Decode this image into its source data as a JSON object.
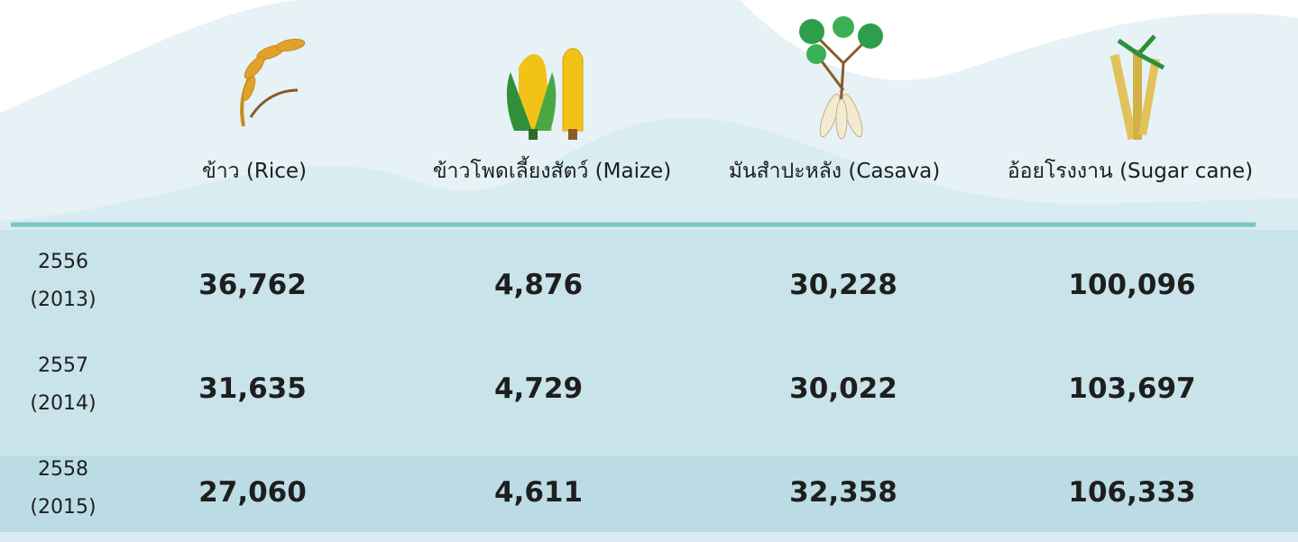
{
  "table": {
    "columns": [
      "ข้าว (Rice)",
      "ข้าวโพดเลี้ยงสัตว์ (Maize)",
      "มันสำปะหลัง (Casava)",
      "อ้อยโรงงาน (Sugar cane)"
    ],
    "rows": [
      {
        "year": "2556",
        "year_ce": "(2013)",
        "values": [
          "36,762",
          "4,876",
          "30,228",
          "100,096"
        ]
      },
      {
        "year": "2557",
        "year_ce": "(2014)",
        "values": [
          "31,635",
          "4,729",
          "30,022",
          "103,697"
        ]
      },
      {
        "year": "2558",
        "year_ce": "(2015)",
        "values": [
          "27,060",
          "4,611",
          "32,358",
          "106,333"
        ]
      }
    ]
  }
}
